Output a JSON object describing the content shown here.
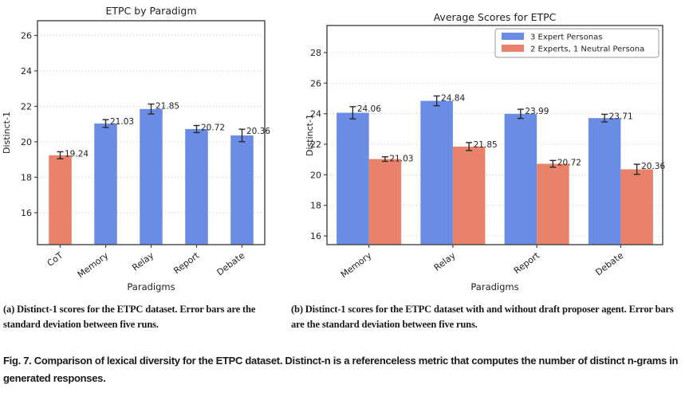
{
  "figure": {
    "captions": {
      "a": "(a) Distinct-1 scores for the ETPC dataset. Error bars are the standard deviation between five runs.",
      "b": "(b) Distinct-1 scores for the ETPC dataset with and without draft proposer agent. Error bars are the standard deviation between five runs.",
      "fig": "Fig. 7.  Comparison of lexical diversity for the ETPC dataset. Distinct-n is a referenceless metric that computes the number of distinct n-grams in generated responses."
    }
  },
  "colors": {
    "blue": "#6b8ce4",
    "orange": "#e8826a",
    "errorbar": "#2a2a2a",
    "grid": "#c8c8c8",
    "frame": "#444444",
    "text": "#1f1f1f",
    "legend_border": "#9a9a9a"
  },
  "chart_data": [
    {
      "type": "bar",
      "title": "ETPC by Paradigm",
      "xlabel": "Paradigms",
      "ylabel": "Distinct-1",
      "categories": [
        "CoT",
        "Memory",
        "Relay",
        "Report",
        "Debate"
      ],
      "values": [
        19.24,
        21.03,
        21.85,
        20.72,
        20.36
      ],
      "errors": [
        0.2,
        0.22,
        0.28,
        0.2,
        0.35
      ],
      "bar_color_keys": [
        "orange",
        "blue",
        "blue",
        "blue",
        "blue"
      ],
      "yticks": [
        16,
        18,
        20,
        22,
        24,
        26
      ],
      "ylim": [
        14.2,
        26.83
      ],
      "grid": true,
      "legend": null
    },
    {
      "type": "grouped_bar",
      "title": "Average Scores for ETPC",
      "xlabel": "Paradigms",
      "ylabel": "Distinct-1",
      "categories": [
        "Memory",
        "Relay",
        "Report",
        "Debate"
      ],
      "series": [
        {
          "name": "3 Expert Personas",
          "color_key": "blue",
          "values": [
            24.06,
            24.84,
            23.99,
            23.71
          ],
          "errors": [
            0.4,
            0.32,
            0.3,
            0.25
          ]
        },
        {
          "name": "2 Experts, 1 Neutral Persona",
          "color_key": "orange",
          "values": [
            21.03,
            21.85,
            20.72,
            20.36
          ],
          "errors": [
            0.15,
            0.26,
            0.22,
            0.33
          ]
        }
      ],
      "yticks": [
        16,
        18,
        20,
        22,
        24,
        26,
        28
      ],
      "ylim": [
        15.43,
        29.77
      ],
      "grid": true,
      "legend_position": "upper right"
    }
  ]
}
